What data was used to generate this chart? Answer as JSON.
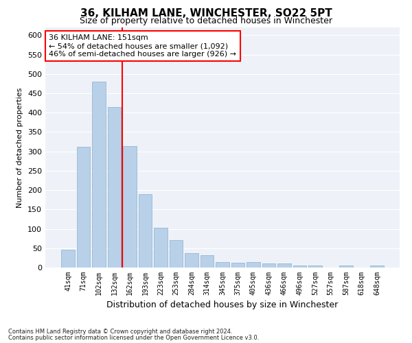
{
  "title": "36, KILHAM LANE, WINCHESTER, SO22 5PT",
  "subtitle": "Size of property relative to detached houses in Winchester",
  "xlabel": "Distribution of detached houses by size in Winchester",
  "ylabel": "Number of detached properties",
  "bar_color": "#b8d0e8",
  "bar_edge_color": "#8ab0d0",
  "categories": [
    "41sqm",
    "71sqm",
    "102sqm",
    "132sqm",
    "162sqm",
    "193sqm",
    "223sqm",
    "253sqm",
    "284sqm",
    "314sqm",
    "345sqm",
    "375sqm",
    "405sqm",
    "436sqm",
    "466sqm",
    "496sqm",
    "527sqm",
    "557sqm",
    "587sqm",
    "618sqm",
    "648sqm"
  ],
  "values": [
    46,
    311,
    480,
    415,
    313,
    190,
    103,
    70,
    38,
    32,
    14,
    12,
    15,
    11,
    10,
    5,
    5,
    0,
    5,
    0,
    5
  ],
  "ylim": [
    0,
    620
  ],
  "yticks": [
    0,
    50,
    100,
    150,
    200,
    250,
    300,
    350,
    400,
    450,
    500,
    550,
    600
  ],
  "vline_x": 3.5,
  "vline_color": "red",
  "annotation_text": "36 KILHAM LANE: 151sqm\n← 54% of detached houses are smaller (1,092)\n46% of semi-detached houses are larger (926) →",
  "annotation_box_color": "white",
  "annotation_box_edge_color": "red",
  "footer_line1": "Contains HM Land Registry data © Crown copyright and database right 2024.",
  "footer_line2": "Contains public sector information licensed under the Open Government Licence v3.0.",
  "background_color": "#ffffff",
  "plot_bg_color": "#eef2f8",
  "grid_color": "#ffffff"
}
